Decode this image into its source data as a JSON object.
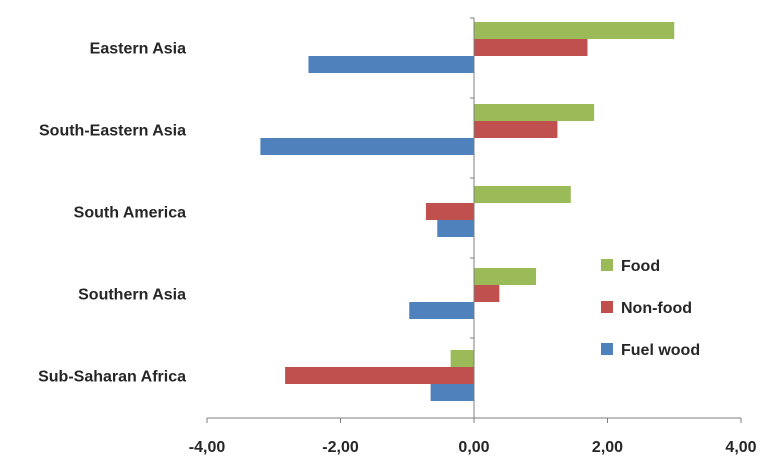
{
  "chart_data": {
    "type": "bar",
    "orientation": "horizontal",
    "categories": [
      "Eastern Asia",
      "South-Eastern Asia",
      "South America",
      "Southern Asia",
      "Sub-Saharan Africa"
    ],
    "series": [
      {
        "name": "Food",
        "color": "#9bbb59",
        "values": [
          3.0,
          1.8,
          1.45,
          0.93,
          -0.35
        ]
      },
      {
        "name": "Non-food",
        "color": "#c0504d",
        "values": [
          1.7,
          1.25,
          -0.72,
          0.38,
          -2.83
        ]
      },
      {
        "name": "Fuel wood",
        "color": "#4f81bd",
        "values": [
          -2.48,
          -3.2,
          -0.55,
          -0.97,
          -0.65
        ]
      }
    ],
    "xlim": [
      -4,
      4
    ],
    "xticks": [
      "-4,00",
      "-2,00",
      "0,00",
      "2,00",
      "4,00"
    ],
    "xtick_values": [
      -4,
      -2,
      0,
      2,
      4
    ],
    "legend_position": "right",
    "grid": false,
    "title": "",
    "xlabel": "",
    "ylabel": ""
  }
}
